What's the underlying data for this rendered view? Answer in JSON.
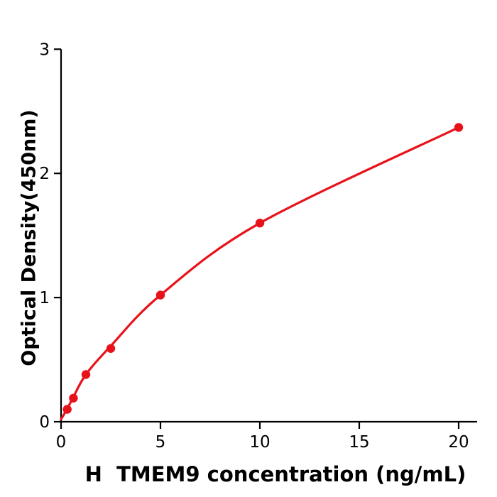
{
  "figure": {
    "background_color": "#ffffff",
    "text_color": "#000000"
  },
  "chart_data": {
    "type": "scatter",
    "title": "",
    "xlabel": "H  TMEM9 concentration (ng/mL)",
    "ylabel": "Optical Density(450nm)",
    "x": [
      0.31,
      0.62,
      1.25,
      2.5,
      5,
      10,
      20
    ],
    "y": [
      0.1,
      0.19,
      0.38,
      0.59,
      1.02,
      1.6,
      2.37
    ],
    "fit_curve_points": [
      [
        0,
        0.02
      ],
      [
        0.31,
        0.105
      ],
      [
        0.62,
        0.2
      ],
      [
        1.25,
        0.38
      ],
      [
        2.5,
        0.61
      ],
      [
        5,
        1.02
      ],
      [
        10,
        1.6
      ],
      [
        20,
        2.37
      ]
    ],
    "xlim": [
      0,
      20.9
    ],
    "ylim": [
      0,
      3
    ],
    "xticks": [
      0,
      5,
      10,
      15,
      20
    ],
    "yticks": [
      0,
      1,
      2,
      3
    ],
    "grid": false,
    "legend": null,
    "line_color": "#e8121a",
    "marker_color": "#e8121a",
    "axis_color": "#000000"
  }
}
